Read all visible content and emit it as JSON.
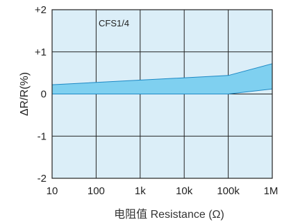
{
  "chart_data": {
    "type": "area",
    "x_scale": "log",
    "x_tick_labels": [
      "10",
      "100",
      "1k",
      "10k",
      "100k",
      "1M"
    ],
    "x_tick_values": [
      10,
      100,
      1000,
      10000,
      100000,
      1000000
    ],
    "y_tick_labels": [
      "+2",
      "+1",
      "0",
      "-1",
      "-2"
    ],
    "y_tick_values": [
      2,
      1,
      0,
      -1,
      -2
    ],
    "ylim": [
      -2,
      2
    ],
    "xlim": [
      10,
      1000000
    ],
    "xlabel": "电阻值 Resistance (Ω)",
    "ylabel": "ΔR/R(%)",
    "annotation": "CFS1/4",
    "grid": true,
    "band": {
      "upper": {
        "x": [
          10,
          100000,
          1000000
        ],
        "y": [
          0.22,
          0.44,
          0.72
        ]
      },
      "lower": {
        "x": [
          10,
          100000,
          1000000
        ],
        "y": [
          0.0,
          0.0,
          0.12
        ]
      }
    },
    "colors": {
      "plot_bg": "#dbeef8",
      "band_fill": "#7fd0f0",
      "band_line": "#1c88c4",
      "grid": "#222222"
    }
  }
}
